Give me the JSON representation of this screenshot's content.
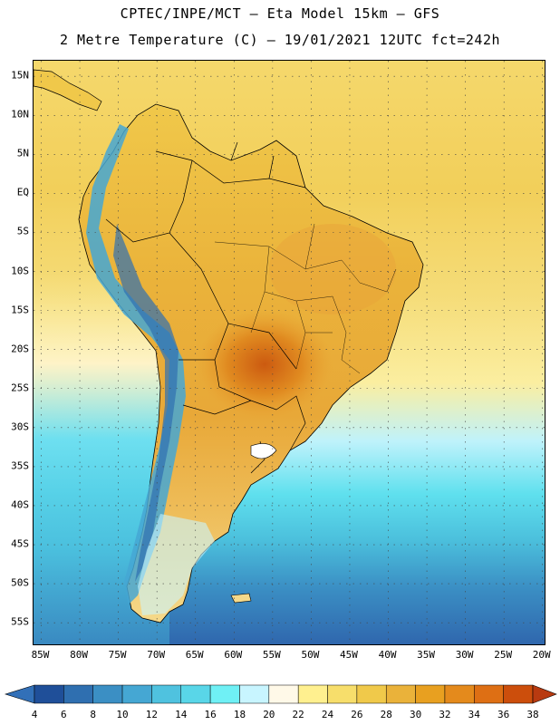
{
  "header": {
    "title_line1": "CPTEC/INPE/MCT –  Eta Model 15km – GFS",
    "title_line2": "2 Metre Temperature (C) – 19/01/2021 12UTC fct=242h"
  },
  "map": {
    "region": "South America",
    "lat_ticks": [
      "15N",
      "10N",
      "5N",
      "EQ",
      "5S",
      "10S",
      "15S",
      "20S",
      "25S",
      "30S",
      "35S",
      "40S",
      "45S",
      "50S",
      "55S"
    ],
    "lon_ticks": [
      "85W",
      "80W",
      "75W",
      "70W",
      "65W",
      "60W",
      "55W",
      "50W",
      "45W",
      "40W",
      "35W",
      "30W",
      "25W",
      "20W"
    ],
    "extent": {
      "lon_min": -86,
      "lon_max": -19.5,
      "lat_min": -58,
      "lat_max": 17
    }
  },
  "legend": {
    "levels": [
      "4",
      "6",
      "8",
      "10",
      "12",
      "14",
      "16",
      "18",
      "20",
      "22",
      "24",
      "26",
      "28",
      "30",
      "32",
      "34",
      "36",
      "38"
    ],
    "colors": [
      "#1f4f99",
      "#2f6fb0",
      "#3b8fc4",
      "#45a7d3",
      "#4fc2df",
      "#59d6e8",
      "#6ff0f5",
      "#c8f5ff",
      "#fff9e8",
      "#fff08f",
      "#f7de6b",
      "#f0c94a",
      "#eab23a",
      "#e8a020",
      "#e48a1c",
      "#de6f14",
      "#cc4e0c",
      "#b8360a"
    ],
    "under_color": "#3270b8",
    "over_color": "#b83a10"
  }
}
